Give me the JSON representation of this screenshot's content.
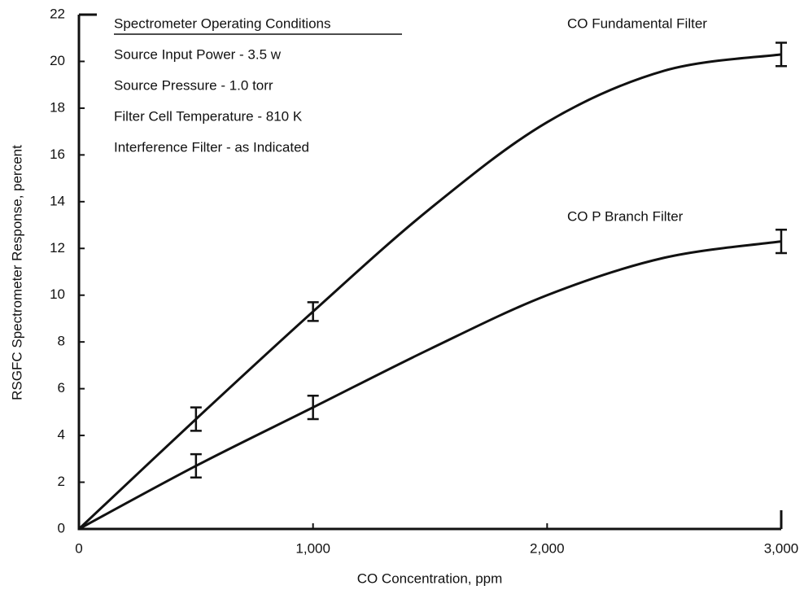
{
  "chart_data": {
    "type": "line",
    "xlabel": "CO Concentration, ppm",
    "ylabel": "RSGFC Spectrometer Response, percent",
    "xlim": [
      0,
      3000
    ],
    "ylim": [
      0,
      22
    ],
    "xticks": [
      0,
      {
        "value": 1000,
        "label": "1,000"
      },
      {
        "value": 2000,
        "label": "2,000"
      },
      {
        "value": 3000,
        "label": "3,000"
      }
    ],
    "yticks": [
      0,
      2,
      4,
      6,
      8,
      10,
      12,
      14,
      16,
      18,
      20,
      22
    ],
    "annotation": {
      "title": "Spectrometer Operating Conditions",
      "lines": [
        "Source Input Power - 3.5 w",
        "Source Pressure - 1.0 torr",
        "Filter Cell Temperature - 810 K",
        "Interference Filter - as Indicated"
      ]
    },
    "x": [
      0,
      500,
      1000,
      1500,
      2000,
      2500,
      3000
    ],
    "series": [
      {
        "name": "CO Fundamental Filter",
        "color": "#111111",
        "values": [
          0,
          4.7,
          9.3,
          13.7,
          17.4,
          19.6,
          20.3
        ],
        "errors": [
          null,
          0.5,
          0.4,
          null,
          null,
          null,
          0.5
        ]
      },
      {
        "name": "CO P Branch Filter",
        "color": "#111111",
        "values": [
          0,
          2.7,
          5.2,
          7.7,
          10.0,
          11.6,
          12.3
        ],
        "errors": [
          null,
          0.5,
          0.5,
          null,
          null,
          null,
          0.5
        ]
      }
    ]
  }
}
